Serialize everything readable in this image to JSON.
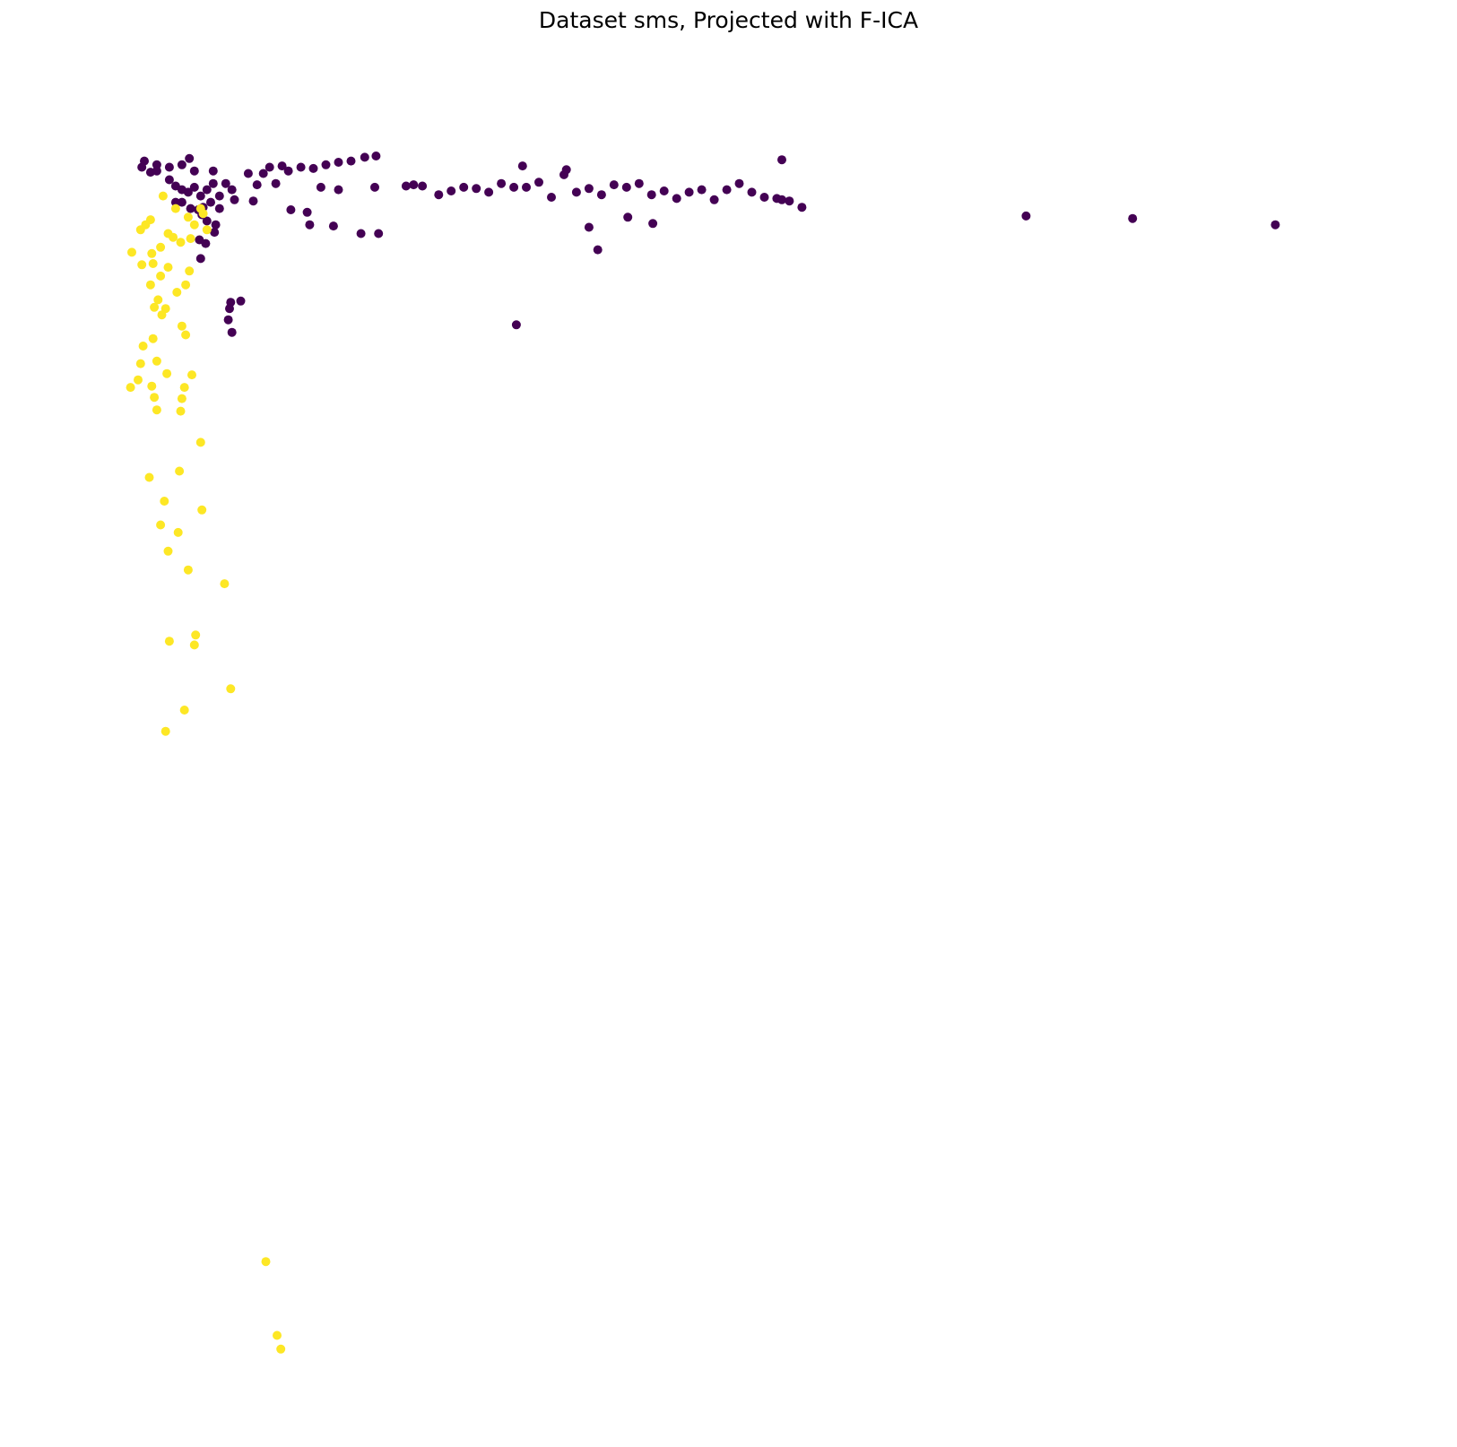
{
  "chart_data": {
    "type": "scatter",
    "title": "Dataset sms, Projected with F-ICA",
    "xlabel": "",
    "ylabel": "",
    "axes_visible": false,
    "grid": false,
    "legend": "none",
    "xlim": [
      0,
      100
    ],
    "ylim": [
      0,
      100
    ],
    "series": [
      {
        "color": "#440154",
        "points": [
          [
            2,
            94.4
          ],
          [
            2.5,
            95
          ],
          [
            1.5,
            95.3
          ],
          [
            1.3,
            94.8
          ],
          [
            2.5,
            94.5
          ],
          [
            3.5,
            94.8
          ],
          [
            4.5,
            95
          ],
          [
            5.5,
            94.5
          ],
          [
            5.1,
            95.5
          ],
          [
            7,
            94.5
          ],
          [
            3.5,
            93.8
          ],
          [
            4,
            93.3
          ],
          [
            4.5,
            93
          ],
          [
            5,
            92.8
          ],
          [
            5.5,
            93.2
          ],
          [
            6,
            92.5
          ],
          [
            6.5,
            93
          ],
          [
            7,
            93.5
          ],
          [
            8,
            93.5
          ],
          [
            8.5,
            93
          ],
          [
            7.5,
            92.5
          ],
          [
            6.2,
            91.6
          ],
          [
            4.5,
            92
          ],
          [
            5.8,
            91.4
          ],
          [
            6.1,
            91
          ],
          [
            6.5,
            90.5
          ],
          [
            7.2,
            90.2
          ],
          [
            6.4,
            88.7
          ],
          [
            6,
            87.5
          ],
          [
            7.1,
            89.6
          ],
          [
            5.9,
            89
          ],
          [
            6.8,
            92
          ],
          [
            7.5,
            91.5
          ],
          [
            5.2,
            91.5
          ],
          [
            4,
            92
          ],
          [
            8.4,
            84
          ],
          [
            8.3,
            83.5
          ],
          [
            8.2,
            82.6
          ],
          [
            9.2,
            84.1
          ],
          [
            8.5,
            81.6
          ],
          [
            9.8,
            94.3
          ],
          [
            10.5,
            93.4
          ],
          [
            10.2,
            92.1
          ],
          [
            8.7,
            92.2
          ],
          [
            11,
            94.3
          ],
          [
            11.5,
            94.8
          ],
          [
            12.5,
            94.9
          ],
          [
            12,
            93.5
          ],
          [
            13,
            94.5
          ],
          [
            14,
            94.8
          ],
          [
            15,
            94.7
          ],
          [
            16,
            95
          ],
          [
            17,
            95.2
          ],
          [
            18,
            95.3
          ],
          [
            19.1,
            95.6
          ],
          [
            20,
            95.7
          ],
          [
            17,
            93
          ],
          [
            15.6,
            93.2
          ],
          [
            14.5,
            91.2
          ],
          [
            13.2,
            91.4
          ],
          [
            14.7,
            90.2
          ],
          [
            16.6,
            90.1
          ],
          [
            18.8,
            89.5
          ],
          [
            20.2,
            89.5
          ],
          [
            19.9,
            93.2
          ],
          [
            22.4,
            93.3
          ],
          [
            23,
            93.4
          ],
          [
            23.7,
            93.3
          ],
          [
            25,
            92.6
          ],
          [
            26,
            92.9
          ],
          [
            27,
            93.2
          ],
          [
            28,
            93.1
          ],
          [
            29,
            92.8
          ],
          [
            30,
            93.5
          ],
          [
            31,
            93.2
          ],
          [
            32,
            93.2
          ],
          [
            33,
            93.6
          ],
          [
            34,
            92.4
          ],
          [
            35,
            94.2
          ],
          [
            36,
            92.8
          ],
          [
            37,
            93.1
          ],
          [
            38,
            92.6
          ],
          [
            39,
            93.4
          ],
          [
            40,
            93.2
          ],
          [
            41,
            93.5
          ],
          [
            42,
            92.6
          ],
          [
            43,
            92.9
          ],
          [
            44,
            92.3
          ],
          [
            45,
            92.8
          ],
          [
            46,
            93
          ],
          [
            47,
            92.2
          ],
          [
            48,
            93
          ],
          [
            49,
            93.5
          ],
          [
            50,
            92.8
          ],
          [
            51,
            92.4
          ],
          [
            52,
            92.3
          ],
          [
            53,
            92.1
          ],
          [
            54,
            91.6
          ],
          [
            31.7,
            94.9
          ],
          [
            35.2,
            94.6
          ],
          [
            37,
            90
          ],
          [
            31.2,
            82.2
          ],
          [
            40.1,
            90.8
          ],
          [
            42.1,
            90.3
          ],
          [
            37.7,
            88.2
          ],
          [
            52.4,
            92.2
          ],
          [
            52.4,
            95.4
          ],
          [
            71.9,
            90.9
          ],
          [
            80.4,
            90.7
          ],
          [
            91.8,
            90.2
          ]
        ]
      },
      {
        "color": "#fde725",
        "points": [
          [
            3,
            92.5
          ],
          [
            4,
            91.5
          ],
          [
            5,
            90.8
          ],
          [
            6.2,
            91.1
          ],
          [
            2,
            90.6
          ],
          [
            1.6,
            90.2
          ],
          [
            1.2,
            89.8
          ],
          [
            3.4,
            89.5
          ],
          [
            3.8,
            89.2
          ],
          [
            4.4,
            88.8
          ],
          [
            5.2,
            89.1
          ],
          [
            6.5,
            89.8
          ],
          [
            0.5,
            88
          ],
          [
            2.1,
            87.9
          ],
          [
            2.2,
            87.1
          ],
          [
            3.4,
            86.8
          ],
          [
            1.3,
            87
          ],
          [
            2.8,
            86.1
          ],
          [
            2,
            85.4
          ],
          [
            2.6,
            84.2
          ],
          [
            2.3,
            83.6
          ],
          [
            4.1,
            84.8
          ],
          [
            3.2,
            83.5
          ],
          [
            4.8,
            85.4
          ],
          [
            5.1,
            86.5
          ],
          [
            2.9,
            83
          ],
          [
            4.5,
            82.1
          ],
          [
            2.2,
            81.1
          ],
          [
            4.8,
            81.4
          ],
          [
            1.4,
            80.5
          ],
          [
            2.5,
            79.3
          ],
          [
            1.2,
            79.1
          ],
          [
            3.3,
            78.3
          ],
          [
            1,
            77.8
          ],
          [
            0.4,
            77.2
          ],
          [
            2.1,
            77.3
          ],
          [
            4.7,
            77.2
          ],
          [
            2.3,
            76.4
          ],
          [
            5.3,
            78.2
          ],
          [
            4.5,
            76.3
          ],
          [
            2.5,
            75.4
          ],
          [
            4.4,
            75.3
          ],
          [
            6,
            72.8
          ],
          [
            1.9,
            70
          ],
          [
            4.3,
            70.5
          ],
          [
            3.1,
            68.1
          ],
          [
            6.1,
            67.4
          ],
          [
            2.8,
            66.2
          ],
          [
            4.2,
            65.6
          ],
          [
            3.4,
            64.1
          ],
          [
            5,
            62.6
          ],
          [
            7.9,
            61.5
          ],
          [
            3.5,
            56.9
          ],
          [
            5.6,
            57.4
          ],
          [
            5.5,
            56.6
          ],
          [
            8.4,
            53.1
          ],
          [
            4.7,
            51.4
          ],
          [
            3.2,
            49.7
          ],
          [
            11.2,
            7.3
          ],
          [
            12.1,
            1.4
          ],
          [
            12.4,
            0.3
          ],
          [
            6,
            91.5
          ],
          [
            5.5,
            90.2
          ],
          [
            2.8,
            88.4
          ]
        ]
      }
    ]
  }
}
